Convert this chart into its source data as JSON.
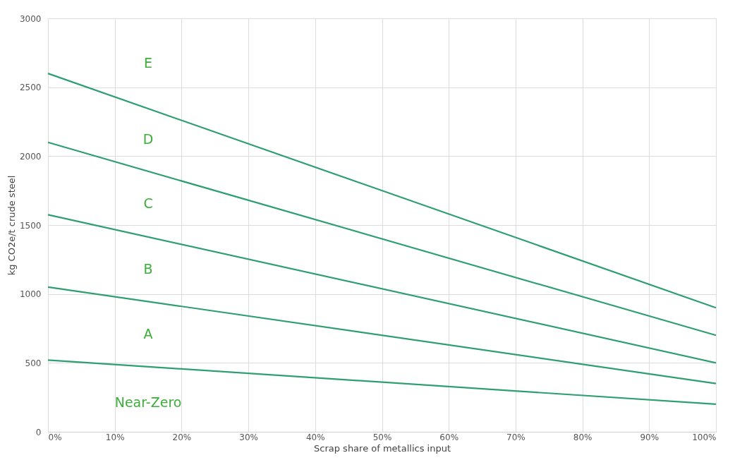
{
  "chart_data": {
    "type": "line",
    "xlabel": "Scrap share of metallics input",
    "ylabel": "kg CO2e/t crude steel",
    "x": [
      0,
      100
    ],
    "series": [
      {
        "color": "#2f9e72",
        "values": [
          520,
          200
        ]
      },
      {
        "color": "#2f9e72",
        "values": [
          1050,
          350
        ]
      },
      {
        "color": "#2f9e72",
        "values": [
          1575,
          500
        ]
      },
      {
        "color": "#2f9e72",
        "values": [
          2100,
          700
        ]
      },
      {
        "color": "#2f9e72",
        "values": [
          2600,
          900
        ]
      }
    ],
    "xlim": [
      0,
      100
    ],
    "xticks": [
      {
        "value": 0,
        "label": "0%"
      },
      {
        "value": 10,
        "label": "10%"
      },
      {
        "value": 20,
        "label": "20%"
      },
      {
        "value": 30,
        "label": "30%"
      },
      {
        "value": 40,
        "label": "40%"
      },
      {
        "value": 50,
        "label": "50%"
      },
      {
        "value": 60,
        "label": "60%"
      },
      {
        "value": 70,
        "label": "70%"
      },
      {
        "value": 80,
        "label": "80%"
      },
      {
        "value": 90,
        "label": "90%"
      },
      {
        "value": 100,
        "label": "100%"
      }
    ],
    "ylim": [
      0,
      3000
    ],
    "yticks": [
      0,
      500,
      1000,
      1500,
      2000,
      2500,
      3000
    ],
    "grid": true,
    "marker": "none",
    "line_style": "solid",
    "annotations": [
      "E",
      "D",
      "C",
      "B",
      "A",
      "Near-Zero"
    ]
  }
}
